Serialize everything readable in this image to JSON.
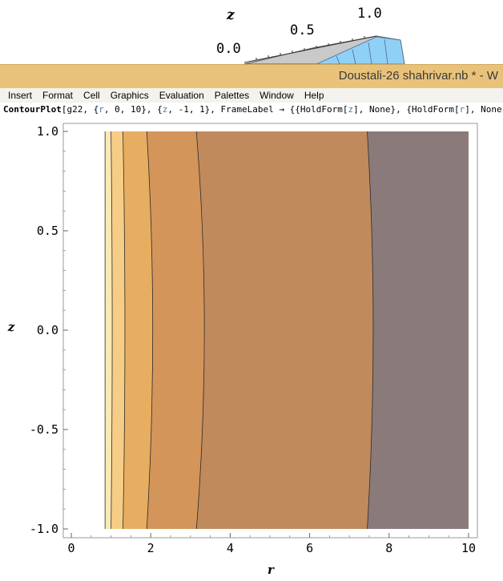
{
  "background_plot": {
    "z_label": "z",
    "tick_labels": [
      "0.0",
      "0.5",
      "1.0"
    ]
  },
  "window": {
    "title": "Doustali-26 shahrivar.nb * - W"
  },
  "menu": {
    "items": [
      "Insert",
      "Format",
      "Cell",
      "Graphics",
      "Evaluation",
      "Palettes",
      "Window",
      "Help"
    ]
  },
  "code": {
    "fn": "ContourPlot",
    "parts": [
      {
        "t": "[g22, {",
        "c": "plain"
      },
      {
        "t": "r",
        "c": "var"
      },
      {
        "t": ", 0, 10}, {",
        "c": "plain"
      },
      {
        "t": "z",
        "c": "var"
      },
      {
        "t": ", -1, 1}, FrameLabel → {{HoldForm[",
        "c": "plain"
      },
      {
        "t": "z",
        "c": "var"
      },
      {
        "t": "], None}, {HoldForm[",
        "c": "plain"
      },
      {
        "t": "r",
        "c": "var"
      },
      {
        "t": "], None",
        "c": "plain"
      }
    ]
  },
  "colors": {
    "titlebar": "#e9c27a",
    "bands": [
      "#fbe9b4",
      "#f6cd86",
      "#e7ad61",
      "#d3955a",
      "#c08a5d",
      "#8a7b7a",
      "#4c66a4",
      "#27548c"
    ],
    "contour_line": "#2b2b2b",
    "frame": "#999999"
  },
  "chart_data": {
    "type": "heatmap",
    "subtype": "contour",
    "xlabel": "r",
    "ylabel": "z",
    "xlim": [
      0,
      10
    ],
    "ylim": [
      -1,
      1
    ],
    "x_ticks": [
      0,
      2,
      4,
      6,
      8,
      10
    ],
    "y_ticks": [
      -1.0,
      -0.5,
      0.0,
      0.5,
      1.0
    ],
    "x_tick_labels": [
      "0",
      "2",
      "4",
      "6",
      "8",
      "10"
    ],
    "y_tick_labels": [
      "-1.0",
      "-0.5",
      "0.0",
      "0.5",
      "1.0"
    ],
    "data_x_start": 0.85,
    "contours": [
      {
        "r_at_edge": 0.85,
        "r_at_center": 0.85
      },
      {
        "r_at_edge": 1.0,
        "r_at_center": 1.03
      },
      {
        "r_at_edge": 1.3,
        "r_at_center": 1.35
      },
      {
        "r_at_edge": 1.9,
        "r_at_center": 2.05
      },
      {
        "r_at_edge": 3.15,
        "r_at_center": 3.35
      },
      {
        "r_at_edge": 7.45,
        "r_at_center": 7.6
      }
    ]
  }
}
